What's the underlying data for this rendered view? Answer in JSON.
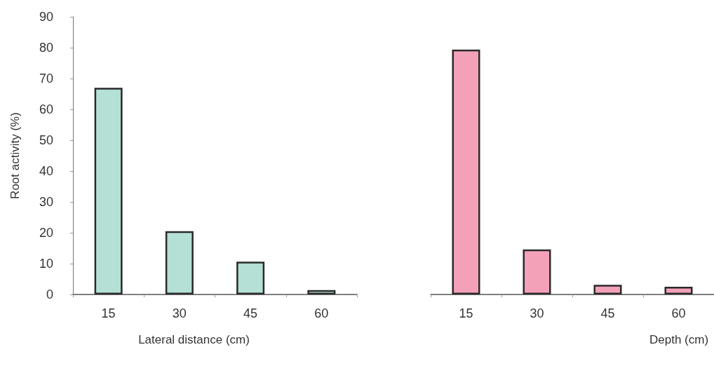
{
  "chart_data": [
    {
      "type": "bar",
      "categories": [
        "15",
        "30",
        "45",
        "60"
      ],
      "values": [
        67,
        20.5,
        10.6,
        1.4
      ],
      "color": "#b4e0d6",
      "xlabel": "Lateral distance (cm)",
      "ylabel": "Root activity (%)",
      "ylim": [
        0,
        90
      ],
      "yticks": [
        0,
        10,
        20,
        30,
        40,
        50,
        60,
        70,
        80,
        90
      ]
    },
    {
      "type": "bar",
      "categories": [
        "15",
        "30",
        "45",
        "60"
      ],
      "values": [
        79.4,
        14.6,
        3.1,
        2.5
      ],
      "color": "#f3a1b9",
      "xlabel": "Depth (cm)",
      "ylim": [
        0,
        90
      ],
      "tick_labels": "x"
    }
  ]
}
